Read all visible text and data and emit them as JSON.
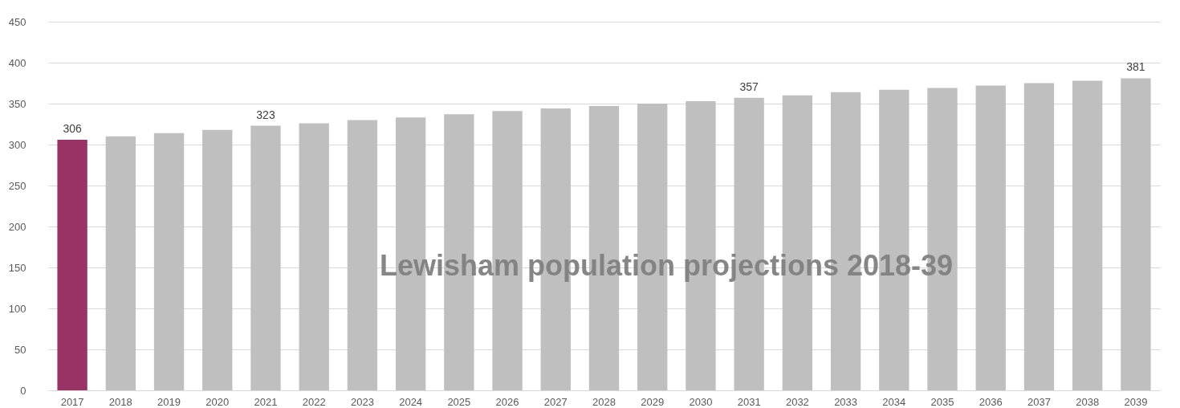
{
  "chart_data": {
    "type": "bar",
    "title": "Lewisham population projections 2018-39",
    "categories": [
      "2017",
      "2018",
      "2019",
      "2020",
      "2021",
      "2022",
      "2023",
      "2024",
      "2025",
      "2026",
      "2027",
      "2028",
      "2029",
      "2030",
      "2031",
      "2032",
      "2033",
      "2034",
      "2035",
      "2036",
      "2037",
      "2038",
      "2039"
    ],
    "values": [
      306,
      310,
      314,
      318,
      323,
      326,
      330,
      333,
      337,
      341,
      344,
      347,
      350,
      353,
      357,
      360,
      364,
      367,
      369,
      372,
      375,
      378,
      381
    ],
    "colors": [
      "#993366",
      "#bfbfbf",
      "#bfbfbf",
      "#bfbfbf",
      "#bfbfbf",
      "#bfbfbf",
      "#bfbfbf",
      "#bfbfbf",
      "#bfbfbf",
      "#bfbfbf",
      "#bfbfbf",
      "#bfbfbf",
      "#bfbfbf",
      "#bfbfbf",
      "#bfbfbf",
      "#bfbfbf",
      "#bfbfbf",
      "#bfbfbf",
      "#bfbfbf",
      "#bfbfbf",
      "#bfbfbf",
      "#bfbfbf",
      "#bfbfbf"
    ],
    "value_labels": [
      "306",
      null,
      null,
      null,
      "323",
      null,
      null,
      null,
      null,
      null,
      null,
      null,
      null,
      null,
      "357",
      null,
      null,
      null,
      null,
      null,
      null,
      null,
      "381"
    ],
    "ylim": [
      0,
      450
    ],
    "yticks": [
      0,
      50,
      100,
      150,
      200,
      250,
      300,
      350,
      400,
      450
    ],
    "grid": "y"
  }
}
